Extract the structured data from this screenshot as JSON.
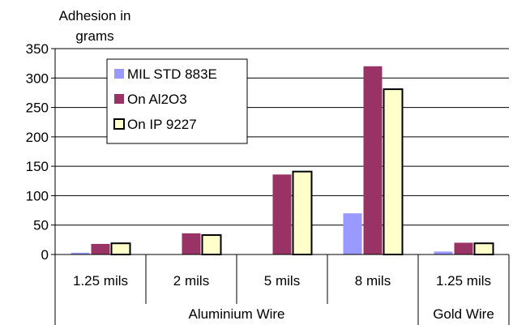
{
  "chart_data": {
    "type": "bar",
    "ylabel": "Adhesion in grams",
    "ylabel_lines": [
      "Adhesion in",
      "grams"
    ],
    "ylim": [
      0,
      350
    ],
    "yticks": [
      0,
      50,
      100,
      150,
      200,
      250,
      300,
      350
    ],
    "grid": true,
    "legend_position": "top-left",
    "categories": [
      "1.25 mils",
      "2 mils",
      "5 mils",
      "8 mils",
      "1.25 mils"
    ],
    "groups": [
      {
        "label": "Aluminium Wire",
        "categories": [
          "1.25 mils",
          "2 mils",
          "5 mils",
          "8 mils"
        ]
      },
      {
        "label": "Gold Wire",
        "categories": [
          "1.25 mils"
        ]
      }
    ],
    "series": [
      {
        "name": "MIL STD 883E",
        "color": "#9999ff",
        "values": [
          3,
          0,
          0,
          70,
          5
        ]
      },
      {
        "name": "On Al2O3",
        "color": "#993366",
        "values": [
          18,
          36,
          136,
          320,
          20
        ]
      },
      {
        "name": "On IP 9227",
        "color": "#ffffcc",
        "values": [
          19,
          33,
          141,
          281,
          19
        ]
      }
    ]
  }
}
